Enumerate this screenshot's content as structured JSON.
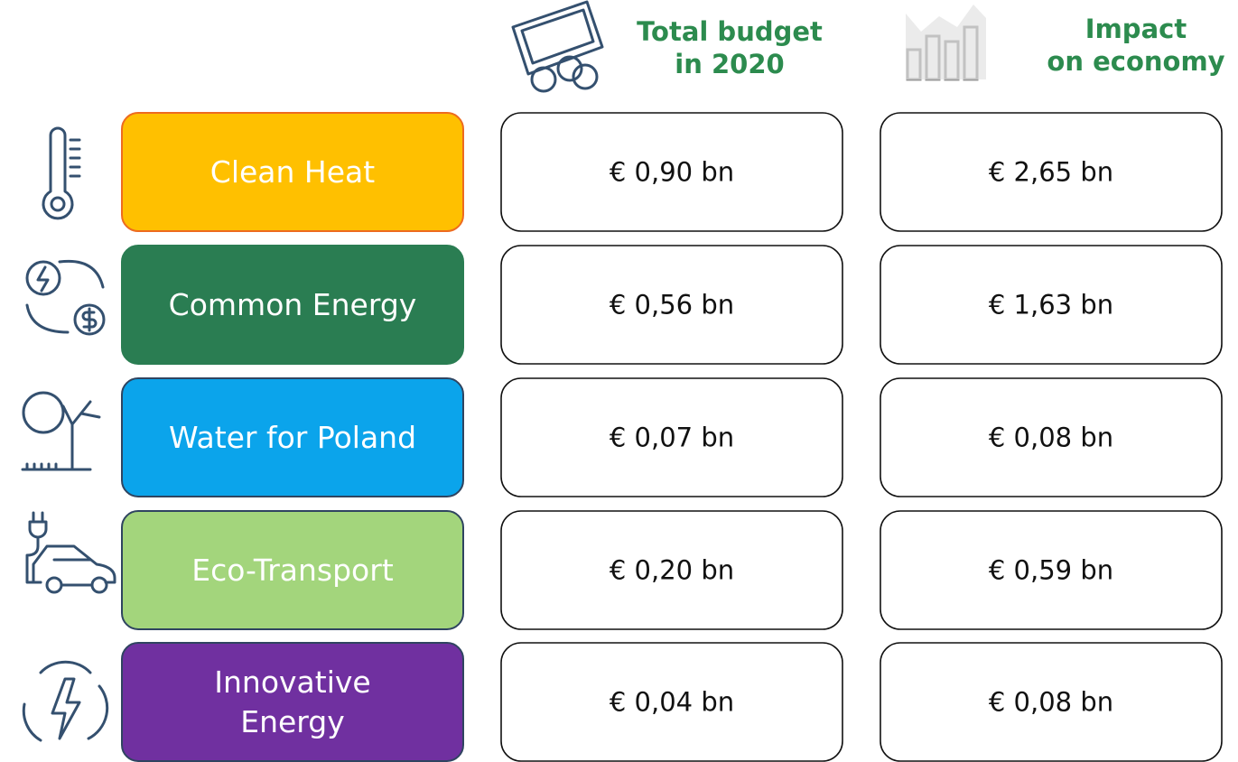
{
  "header": {
    "budget": [
      "Total budget",
      "in 2020"
    ],
    "impact": [
      "Impact",
      "on economy"
    ]
  },
  "rows": [
    {
      "label": [
        "Clean Heat"
      ],
      "color": "#FFC000",
      "text_color": "#ffffff",
      "border": "#ED6B1F",
      "budget": "€ 0,90 bn",
      "impact": "€ 2,65 bn"
    },
    {
      "label": [
        "Common Energy"
      ],
      "color": "#2A7D52",
      "text_color": "#ffffff",
      "border": "#2A7D52",
      "budget": "€ 0,56 bn",
      "impact": "€ 1,63 bn"
    },
    {
      "label": [
        "Water for Poland"
      ],
      "color": "#0BA4EB",
      "text_color": "#ffffff",
      "border": "#2F4460",
      "budget": "€ 0,07 bn",
      "impact": "€ 0,08 bn"
    },
    {
      "label": [
        "Eco-Transport"
      ],
      "color": "#A3D57C",
      "text_color": "#ffffff",
      "border": "#2F4460",
      "budget": "€ 0,20 bn",
      "impact": "€ 0,59 bn"
    },
    {
      "label": [
        "Innovative",
        "Energy"
      ],
      "color": "#7030A0",
      "text_color": "#ffffff",
      "border": "#2F4460",
      "budget": "€ 0,04 bn",
      "impact": "€ 0,08 bn"
    }
  ]
}
